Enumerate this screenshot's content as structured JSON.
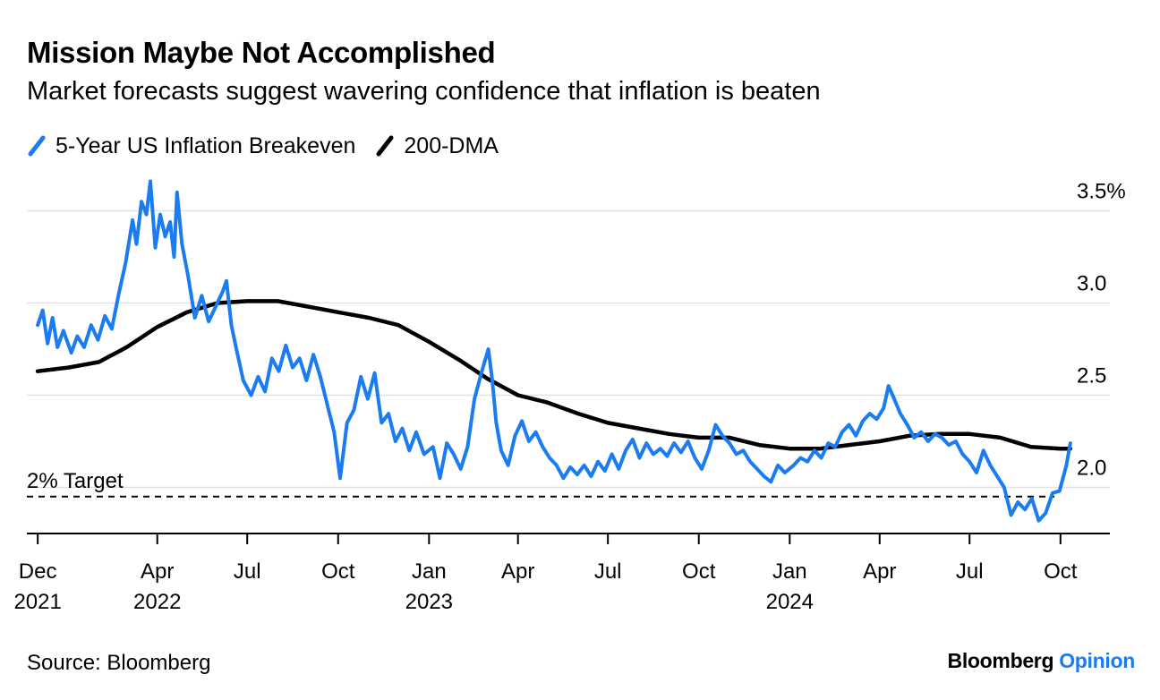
{
  "header": {
    "title": "Mission Maybe Not Accomplished",
    "subtitle": "Market forecasts suggest wavering confidence that inflation is beaten"
  },
  "legend": [
    {
      "label": "5-Year US Inflation Breakeven",
      "color": "#1a7cf0"
    },
    {
      "label": "200-DMA",
      "color": "#000000"
    }
  ],
  "footer": {
    "source": "Source: Bloomberg",
    "brand_name": "Bloomberg",
    "brand_suffix": "Opinion",
    "brand_suffix_color": "#1a7cf0"
  },
  "chart_data": {
    "type": "line",
    "title": "Mission Maybe Not Accomplished",
    "subtitle": "Market forecasts suggest wavering confidence that inflation is beaten",
    "xlabel": "",
    "ylabel": "",
    "x_range": [
      "2021-11-20",
      "2024-11-20"
    ],
    "ylim": [
      1.75,
      3.75
    ],
    "y_axis_side": "right",
    "grid": true,
    "legend_position": "top-left",
    "y_ticks": [
      {
        "value": 2.0,
        "label": "2.0"
      },
      {
        "value": 2.5,
        "label": "2.5"
      },
      {
        "value": 3.0,
        "label": "3.0"
      },
      {
        "value": 3.5,
        "label": "3.5%"
      }
    ],
    "x_ticks": [
      {
        "date": "2021-12-01",
        "label": "Dec",
        "year": "2021"
      },
      {
        "date": "2022-04-01",
        "label": "Apr",
        "year": "2022"
      },
      {
        "date": "2022-07-01",
        "label": "Jul",
        "year": ""
      },
      {
        "date": "2022-10-01",
        "label": "Oct",
        "year": ""
      },
      {
        "date": "2023-01-01",
        "label": "Jan",
        "year": "2023"
      },
      {
        "date": "2023-04-01",
        "label": "Apr",
        "year": ""
      },
      {
        "date": "2023-07-01",
        "label": "Jul",
        "year": ""
      },
      {
        "date": "2023-10-01",
        "label": "Oct",
        "year": ""
      },
      {
        "date": "2024-01-01",
        "label": "Jan",
        "year": "2024"
      },
      {
        "date": "2024-04-01",
        "label": "Apr",
        "year": ""
      },
      {
        "date": "2024-07-01",
        "label": "Jul",
        "year": ""
      },
      {
        "date": "2024-10-01",
        "label": "Oct",
        "year": ""
      }
    ],
    "reference_line": {
      "value": 1.95,
      "label": "2% Target",
      "style": "dashed"
    },
    "series": [
      {
        "name": "5-Year US Inflation Breakeven",
        "color": "#1a7cf0",
        "points": [
          [
            "2021-12-01",
            2.88
          ],
          [
            "2021-12-06",
            2.96
          ],
          [
            "2021-12-11",
            2.78
          ],
          [
            "2021-12-16",
            2.92
          ],
          [
            "2021-12-21",
            2.76
          ],
          [
            "2021-12-27",
            2.85
          ],
          [
            "2022-01-04",
            2.73
          ],
          [
            "2022-01-10",
            2.82
          ],
          [
            "2022-01-17",
            2.76
          ],
          [
            "2022-01-24",
            2.88
          ],
          [
            "2022-01-31",
            2.8
          ],
          [
            "2022-02-07",
            2.93
          ],
          [
            "2022-02-14",
            2.86
          ],
          [
            "2022-02-21",
            3.05
          ],
          [
            "2022-02-28",
            3.22
          ],
          [
            "2022-03-07",
            3.45
          ],
          [
            "2022-03-11",
            3.32
          ],
          [
            "2022-03-16",
            3.55
          ],
          [
            "2022-03-21",
            3.48
          ],
          [
            "2022-03-25",
            3.66
          ],
          [
            "2022-03-30",
            3.3
          ],
          [
            "2022-04-04",
            3.48
          ],
          [
            "2022-04-09",
            3.36
          ],
          [
            "2022-04-14",
            3.44
          ],
          [
            "2022-04-18",
            3.25
          ],
          [
            "2022-04-21",
            3.6
          ],
          [
            "2022-04-26",
            3.32
          ],
          [
            "2022-05-02",
            3.15
          ],
          [
            "2022-05-09",
            2.92
          ],
          [
            "2022-05-16",
            3.04
          ],
          [
            "2022-05-23",
            2.9
          ],
          [
            "2022-05-30",
            2.98
          ],
          [
            "2022-06-06",
            3.06
          ],
          [
            "2022-06-10",
            3.12
          ],
          [
            "2022-06-15",
            2.88
          ],
          [
            "2022-06-20",
            2.75
          ],
          [
            "2022-06-27",
            2.58
          ],
          [
            "2022-07-05",
            2.5
          ],
          [
            "2022-07-12",
            2.6
          ],
          [
            "2022-07-19",
            2.52
          ],
          [
            "2022-07-26",
            2.7
          ],
          [
            "2022-08-02",
            2.63
          ],
          [
            "2022-08-09",
            2.77
          ],
          [
            "2022-08-16",
            2.65
          ],
          [
            "2022-08-23",
            2.7
          ],
          [
            "2022-08-30",
            2.58
          ],
          [
            "2022-09-06",
            2.72
          ],
          [
            "2022-09-13",
            2.6
          ],
          [
            "2022-09-20",
            2.45
          ],
          [
            "2022-09-27",
            2.3
          ],
          [
            "2022-10-03",
            2.05
          ],
          [
            "2022-10-10",
            2.35
          ],
          [
            "2022-10-17",
            2.42
          ],
          [
            "2022-10-24",
            2.6
          ],
          [
            "2022-10-31",
            2.48
          ],
          [
            "2022-11-07",
            2.62
          ],
          [
            "2022-11-14",
            2.35
          ],
          [
            "2022-11-21",
            2.4
          ],
          [
            "2022-11-28",
            2.25
          ],
          [
            "2022-12-05",
            2.32
          ],
          [
            "2022-12-12",
            2.2
          ],
          [
            "2022-12-19",
            2.3
          ],
          [
            "2022-12-27",
            2.18
          ],
          [
            "2023-01-05",
            2.22
          ],
          [
            "2023-01-12",
            2.05
          ],
          [
            "2023-01-19",
            2.24
          ],
          [
            "2023-01-26",
            2.18
          ],
          [
            "2023-02-02",
            2.1
          ],
          [
            "2023-02-09",
            2.22
          ],
          [
            "2023-02-16",
            2.48
          ],
          [
            "2023-02-23",
            2.62
          ],
          [
            "2023-03-02",
            2.75
          ],
          [
            "2023-03-06",
            2.58
          ],
          [
            "2023-03-10",
            2.35
          ],
          [
            "2023-03-15",
            2.2
          ],
          [
            "2023-03-22",
            2.12
          ],
          [
            "2023-03-29",
            2.28
          ],
          [
            "2023-04-05",
            2.36
          ],
          [
            "2023-04-12",
            2.25
          ],
          [
            "2023-04-19",
            2.3
          ],
          [
            "2023-04-26",
            2.22
          ],
          [
            "2023-05-03",
            2.16
          ],
          [
            "2023-05-10",
            2.12
          ],
          [
            "2023-05-17",
            2.05
          ],
          [
            "2023-05-24",
            2.11
          ],
          [
            "2023-05-31",
            2.07
          ],
          [
            "2023-06-07",
            2.12
          ],
          [
            "2023-06-14",
            2.06
          ],
          [
            "2023-06-21",
            2.14
          ],
          [
            "2023-06-28",
            2.09
          ],
          [
            "2023-07-05",
            2.18
          ],
          [
            "2023-07-12",
            2.1
          ],
          [
            "2023-07-19",
            2.2
          ],
          [
            "2023-07-26",
            2.26
          ],
          [
            "2023-08-02",
            2.16
          ],
          [
            "2023-08-09",
            2.24
          ],
          [
            "2023-08-16",
            2.18
          ],
          [
            "2023-08-23",
            2.21
          ],
          [
            "2023-08-30",
            2.17
          ],
          [
            "2023-09-06",
            2.24
          ],
          [
            "2023-09-13",
            2.19
          ],
          [
            "2023-09-20",
            2.25
          ],
          [
            "2023-09-27",
            2.16
          ],
          [
            "2023-10-04",
            2.1
          ],
          [
            "2023-10-11",
            2.2
          ],
          [
            "2023-10-18",
            2.34
          ],
          [
            "2023-10-25",
            2.28
          ],
          [
            "2023-11-01",
            2.24
          ],
          [
            "2023-11-08",
            2.18
          ],
          [
            "2023-11-15",
            2.2
          ],
          [
            "2023-11-22",
            2.14
          ],
          [
            "2023-11-29",
            2.1
          ],
          [
            "2023-12-06",
            2.06
          ],
          [
            "2023-12-13",
            2.03
          ],
          [
            "2023-12-20",
            2.12
          ],
          [
            "2023-12-27",
            2.08
          ],
          [
            "2024-01-05",
            2.12
          ],
          [
            "2024-01-12",
            2.16
          ],
          [
            "2024-01-19",
            2.14
          ],
          [
            "2024-01-26",
            2.2
          ],
          [
            "2024-02-02",
            2.16
          ],
          [
            "2024-02-09",
            2.24
          ],
          [
            "2024-02-16",
            2.22
          ],
          [
            "2024-02-23",
            2.3
          ],
          [
            "2024-03-01",
            2.34
          ],
          [
            "2024-03-08",
            2.28
          ],
          [
            "2024-03-15",
            2.36
          ],
          [
            "2024-03-22",
            2.4
          ],
          [
            "2024-03-29",
            2.37
          ],
          [
            "2024-04-05",
            2.43
          ],
          [
            "2024-04-10",
            2.55
          ],
          [
            "2024-04-15",
            2.49
          ],
          [
            "2024-04-22",
            2.4
          ],
          [
            "2024-04-29",
            2.34
          ],
          [
            "2024-05-06",
            2.27
          ],
          [
            "2024-05-13",
            2.3
          ],
          [
            "2024-05-20",
            2.25
          ],
          [
            "2024-05-27",
            2.29
          ],
          [
            "2024-06-03",
            2.27
          ],
          [
            "2024-06-10",
            2.23
          ],
          [
            "2024-06-17",
            2.25
          ],
          [
            "2024-06-24",
            2.18
          ],
          [
            "2024-07-01",
            2.14
          ],
          [
            "2024-07-08",
            2.08
          ],
          [
            "2024-07-15",
            2.2
          ],
          [
            "2024-07-22",
            2.12
          ],
          [
            "2024-07-29",
            2.06
          ],
          [
            "2024-08-05",
            2.0
          ],
          [
            "2024-08-12",
            1.85
          ],
          [
            "2024-08-19",
            1.92
          ],
          [
            "2024-08-26",
            1.88
          ],
          [
            "2024-09-02",
            1.94
          ],
          [
            "2024-09-09",
            1.82
          ],
          [
            "2024-09-16",
            1.86
          ],
          [
            "2024-09-23",
            1.97
          ],
          [
            "2024-09-30",
            1.98
          ],
          [
            "2024-10-07",
            2.12
          ],
          [
            "2024-10-11",
            2.24
          ]
        ]
      },
      {
        "name": "200-DMA",
        "color": "#000000",
        "points": [
          [
            "2021-12-01",
            2.63
          ],
          [
            "2022-01-01",
            2.65
          ],
          [
            "2022-02-01",
            2.68
          ],
          [
            "2022-03-01",
            2.76
          ],
          [
            "2022-04-01",
            2.87
          ],
          [
            "2022-05-01",
            2.95
          ],
          [
            "2022-06-01",
            3.0
          ],
          [
            "2022-07-01",
            3.01
          ],
          [
            "2022-08-01",
            3.01
          ],
          [
            "2022-09-01",
            2.98
          ],
          [
            "2022-10-01",
            2.95
          ],
          [
            "2022-11-01",
            2.92
          ],
          [
            "2022-12-01",
            2.88
          ],
          [
            "2023-01-01",
            2.79
          ],
          [
            "2023-02-01",
            2.69
          ],
          [
            "2023-03-01",
            2.59
          ],
          [
            "2023-04-01",
            2.5
          ],
          [
            "2023-05-01",
            2.46
          ],
          [
            "2023-06-01",
            2.4
          ],
          [
            "2023-07-01",
            2.35
          ],
          [
            "2023-08-01",
            2.32
          ],
          [
            "2023-09-01",
            2.29
          ],
          [
            "2023-10-01",
            2.27
          ],
          [
            "2023-11-01",
            2.27
          ],
          [
            "2023-12-01",
            2.23
          ],
          [
            "2024-01-01",
            2.21
          ],
          [
            "2024-02-01",
            2.21
          ],
          [
            "2024-03-01",
            2.23
          ],
          [
            "2024-04-01",
            2.25
          ],
          [
            "2024-05-01",
            2.28
          ],
          [
            "2024-06-01",
            2.29
          ],
          [
            "2024-07-01",
            2.29
          ],
          [
            "2024-08-01",
            2.27
          ],
          [
            "2024-09-01",
            2.22
          ],
          [
            "2024-10-01",
            2.21
          ],
          [
            "2024-10-11",
            2.21
          ]
        ]
      }
    ]
  }
}
